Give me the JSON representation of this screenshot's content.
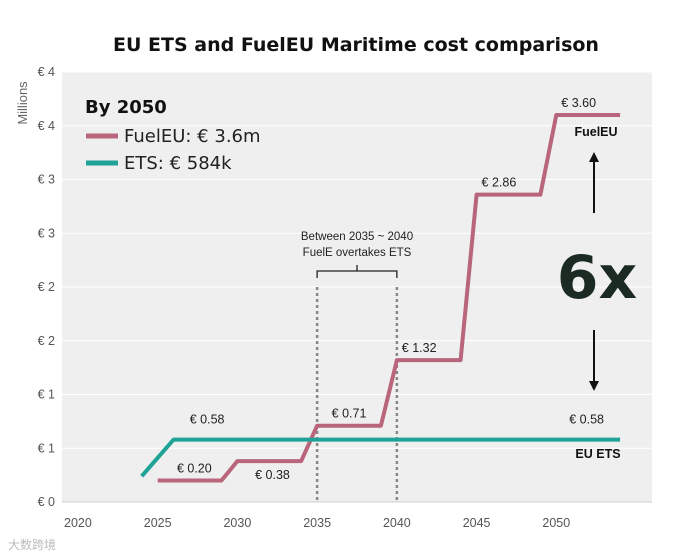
{
  "chart_data": {
    "type": "line",
    "title": "EU ETS and FuelEU Maritime cost comparison",
    "ylabel": "Millions",
    "xlabel": "",
    "x_ticks": [
      "2020",
      "2025",
      "2030",
      "2035",
      "2040",
      "2045",
      "2050"
    ],
    "y_ticks": [
      "€ 0",
      "€ 1",
      "€ 1",
      "€ 2",
      "€ 2",
      "€ 3",
      "€ 3",
      "€ 4",
      "€ 4"
    ],
    "xlim": [
      2019,
      2056
    ],
    "ylim": [
      0,
      4
    ],
    "colors": {
      "fueleu": "#b9657c",
      "ets": "#1fa396",
      "plot_bg": "#efefef",
      "grid": "#ffffff"
    },
    "series": [
      {
        "name": "FuelEU",
        "color": "#b9657c",
        "x": [
          2025,
          2029,
          2030,
          2034,
          2035,
          2039,
          2040,
          2044,
          2045,
          2049,
          2050,
          2054
        ],
        "y": [
          0.2,
          0.2,
          0.38,
          0.38,
          0.71,
          0.71,
          1.32,
          1.32,
          2.86,
          2.86,
          3.6,
          3.6
        ]
      },
      {
        "name": "ETS",
        "color": "#1fa396",
        "x": [
          2024,
          2026,
          2054
        ],
        "y": [
          0.24,
          0.58,
          0.58
        ]
      }
    ],
    "data_labels": [
      {
        "text": "€ 0.20",
        "x": 2027.3,
        "y": 0.2,
        "pos": "above"
      },
      {
        "text": "€ 0.38",
        "x": 2032.2,
        "y": 0.38,
        "pos": "below"
      },
      {
        "text": "€ 0.71",
        "x": 2037,
        "y": 0.71,
        "pos": "above"
      },
      {
        "text": "€ 1.32",
        "x": 2041.4,
        "y": 1.32,
        "pos": "above"
      },
      {
        "text": "€ 2.86",
        "x": 2046.4,
        "y": 2.86,
        "pos": "above"
      },
      {
        "text": "€ 3.60",
        "x": 2051.4,
        "y": 3.6,
        "pos": "above"
      },
      {
        "text": "€ 0.58",
        "x": 2028.1,
        "y": 0.58,
        "pos": "above_far"
      },
      {
        "text": "€ 0.58",
        "x": 2051.9,
        "y": 0.58,
        "pos": "above_far"
      }
    ],
    "legend": {
      "title": "By 2050",
      "placement": "top-left",
      "entries": [
        {
          "name": "FuelEU: € 3.6m",
          "color": "#b9657c"
        },
        {
          "name": "ETS: € 584k",
          "color": "#1fa396"
        }
      ]
    },
    "annotations": {
      "bracket_text": [
        "Between 2035 ~ 2040",
        "FuelE overtakes ETS"
      ],
      "bracket_x": [
        2035,
        2040
      ],
      "fueleu_label": "FuelEU",
      "ets_label": "EU ETS",
      "multiplier": "6x"
    },
    "watermark": "大数跨境"
  }
}
